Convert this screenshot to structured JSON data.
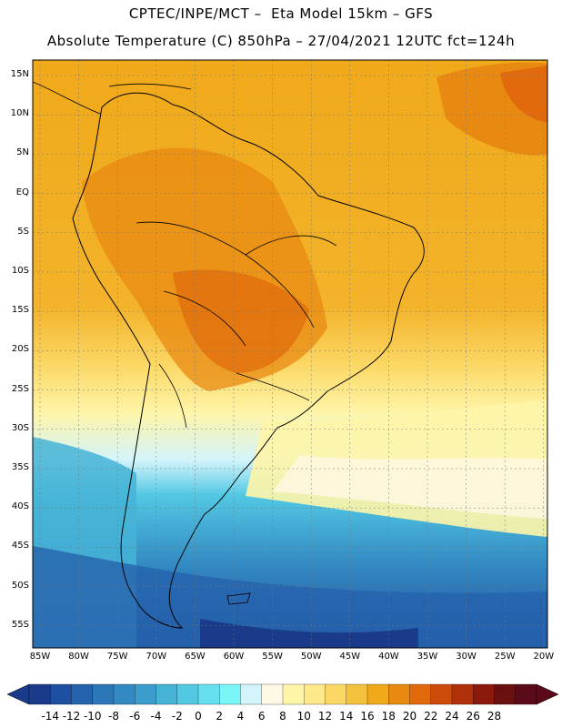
{
  "header": {
    "line1": "CPTEC/INPE/MCT –  Eta Model 15km – GFS",
    "line2": "Absolute Temperature (C) 850hPa – 27/04/2021 12UTC fct=124h"
  },
  "map": {
    "lat_labels": [
      "15N",
      "10N",
      "5N",
      "EQ",
      "5S",
      "10S",
      "15S",
      "20S",
      "25S",
      "30S",
      "35S",
      "40S",
      "45S",
      "50S",
      "55S"
    ],
    "lon_labels": [
      "85W",
      "80W",
      "75W",
      "70W",
      "65W",
      "60W",
      "55W",
      "50W",
      "45W",
      "40W",
      "35W",
      "30W",
      "25W",
      "20W"
    ],
    "grid": "dashed"
  },
  "colorbar": {
    "labels": [
      "-14",
      "-12",
      "-10",
      "-8",
      "-6",
      "-4",
      "-2",
      "0",
      "2",
      "4",
      "6",
      "8",
      "10",
      "12",
      "14",
      "16",
      "18",
      "20",
      "22",
      "24",
      "26",
      "28"
    ],
    "colors": [
      "#1a3a8a",
      "#1f4fa0",
      "#2563ad",
      "#2b77b8",
      "#3389c2",
      "#3c9ccb",
      "#45b3d6",
      "#52c8e3",
      "#66e0ef",
      "#7af5f8",
      "#d4f4fb",
      "#fff8e5",
      "#fef5a8",
      "#fde98a",
      "#fbd866",
      "#f5c23d",
      "#f0a91a",
      "#e88a12",
      "#e06a0c",
      "#cc4a0a",
      "#b0300a",
      "#8c1a0c",
      "#6a1010",
      "#5a0a18"
    ]
  }
}
